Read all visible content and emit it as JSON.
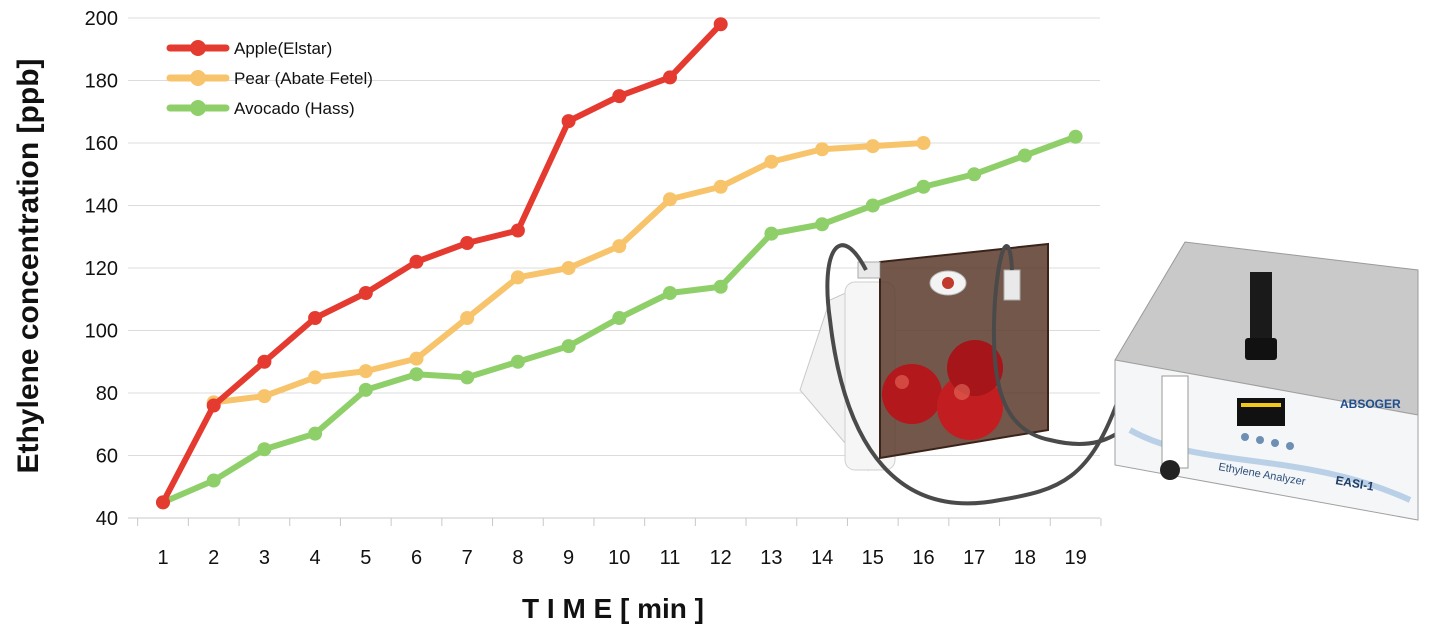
{
  "chart_data": {
    "type": "line",
    "ylabel": "Ethylene concentration [ppb]",
    "xlabel": "T I M E [ min ]",
    "ylim": [
      40,
      200
    ],
    "y_ticks": [
      "40",
      "60",
      "80",
      "100",
      "120",
      "140",
      "160",
      "180",
      "200"
    ],
    "x_ticks": [
      "1",
      "2",
      "3",
      "4",
      "5",
      "6",
      "7",
      "8",
      "9",
      "10",
      "11",
      "12",
      "13",
      "14",
      "15",
      "16",
      "17",
      "18",
      "19"
    ],
    "grid": "horizontal",
    "legend_position": "top-left",
    "series": [
      {
        "name": "Apple(Elstar)",
        "color": "#e43a2f",
        "x": [
          1,
          2,
          3,
          4,
          5,
          6,
          7,
          8,
          9,
          10,
          11,
          12
        ],
        "y": [
          45,
          76,
          90,
          104,
          112,
          122,
          128,
          132,
          167,
          175,
          181,
          198
        ]
      },
      {
        "name": "Pear (Abate Fetel)",
        "color": "#f7c46c",
        "x": [
          2,
          3,
          4,
          5,
          6,
          7,
          8,
          9,
          10,
          11,
          12,
          13,
          14,
          15,
          16
        ],
        "y": [
          77,
          79,
          85,
          87,
          91,
          104,
          117,
          120,
          127,
          142,
          146,
          154,
          158,
          159,
          160
        ]
      },
      {
        "name": "Avocado (Hass)",
        "color": "#8fcf6a",
        "x": [
          1,
          2,
          3,
          4,
          5,
          6,
          7,
          8,
          9,
          10,
          11,
          12,
          13,
          14,
          15,
          16,
          17,
          18,
          19
        ],
        "y": [
          45,
          52,
          62,
          67,
          81,
          86,
          85,
          90,
          95,
          104,
          112,
          114,
          131,
          134,
          140,
          146,
          150,
          156,
          162
        ]
      }
    ]
  },
  "device": {
    "brand": "ABSOGER",
    "product": "Ethylene Analyzer",
    "model": "EASI-1"
  }
}
